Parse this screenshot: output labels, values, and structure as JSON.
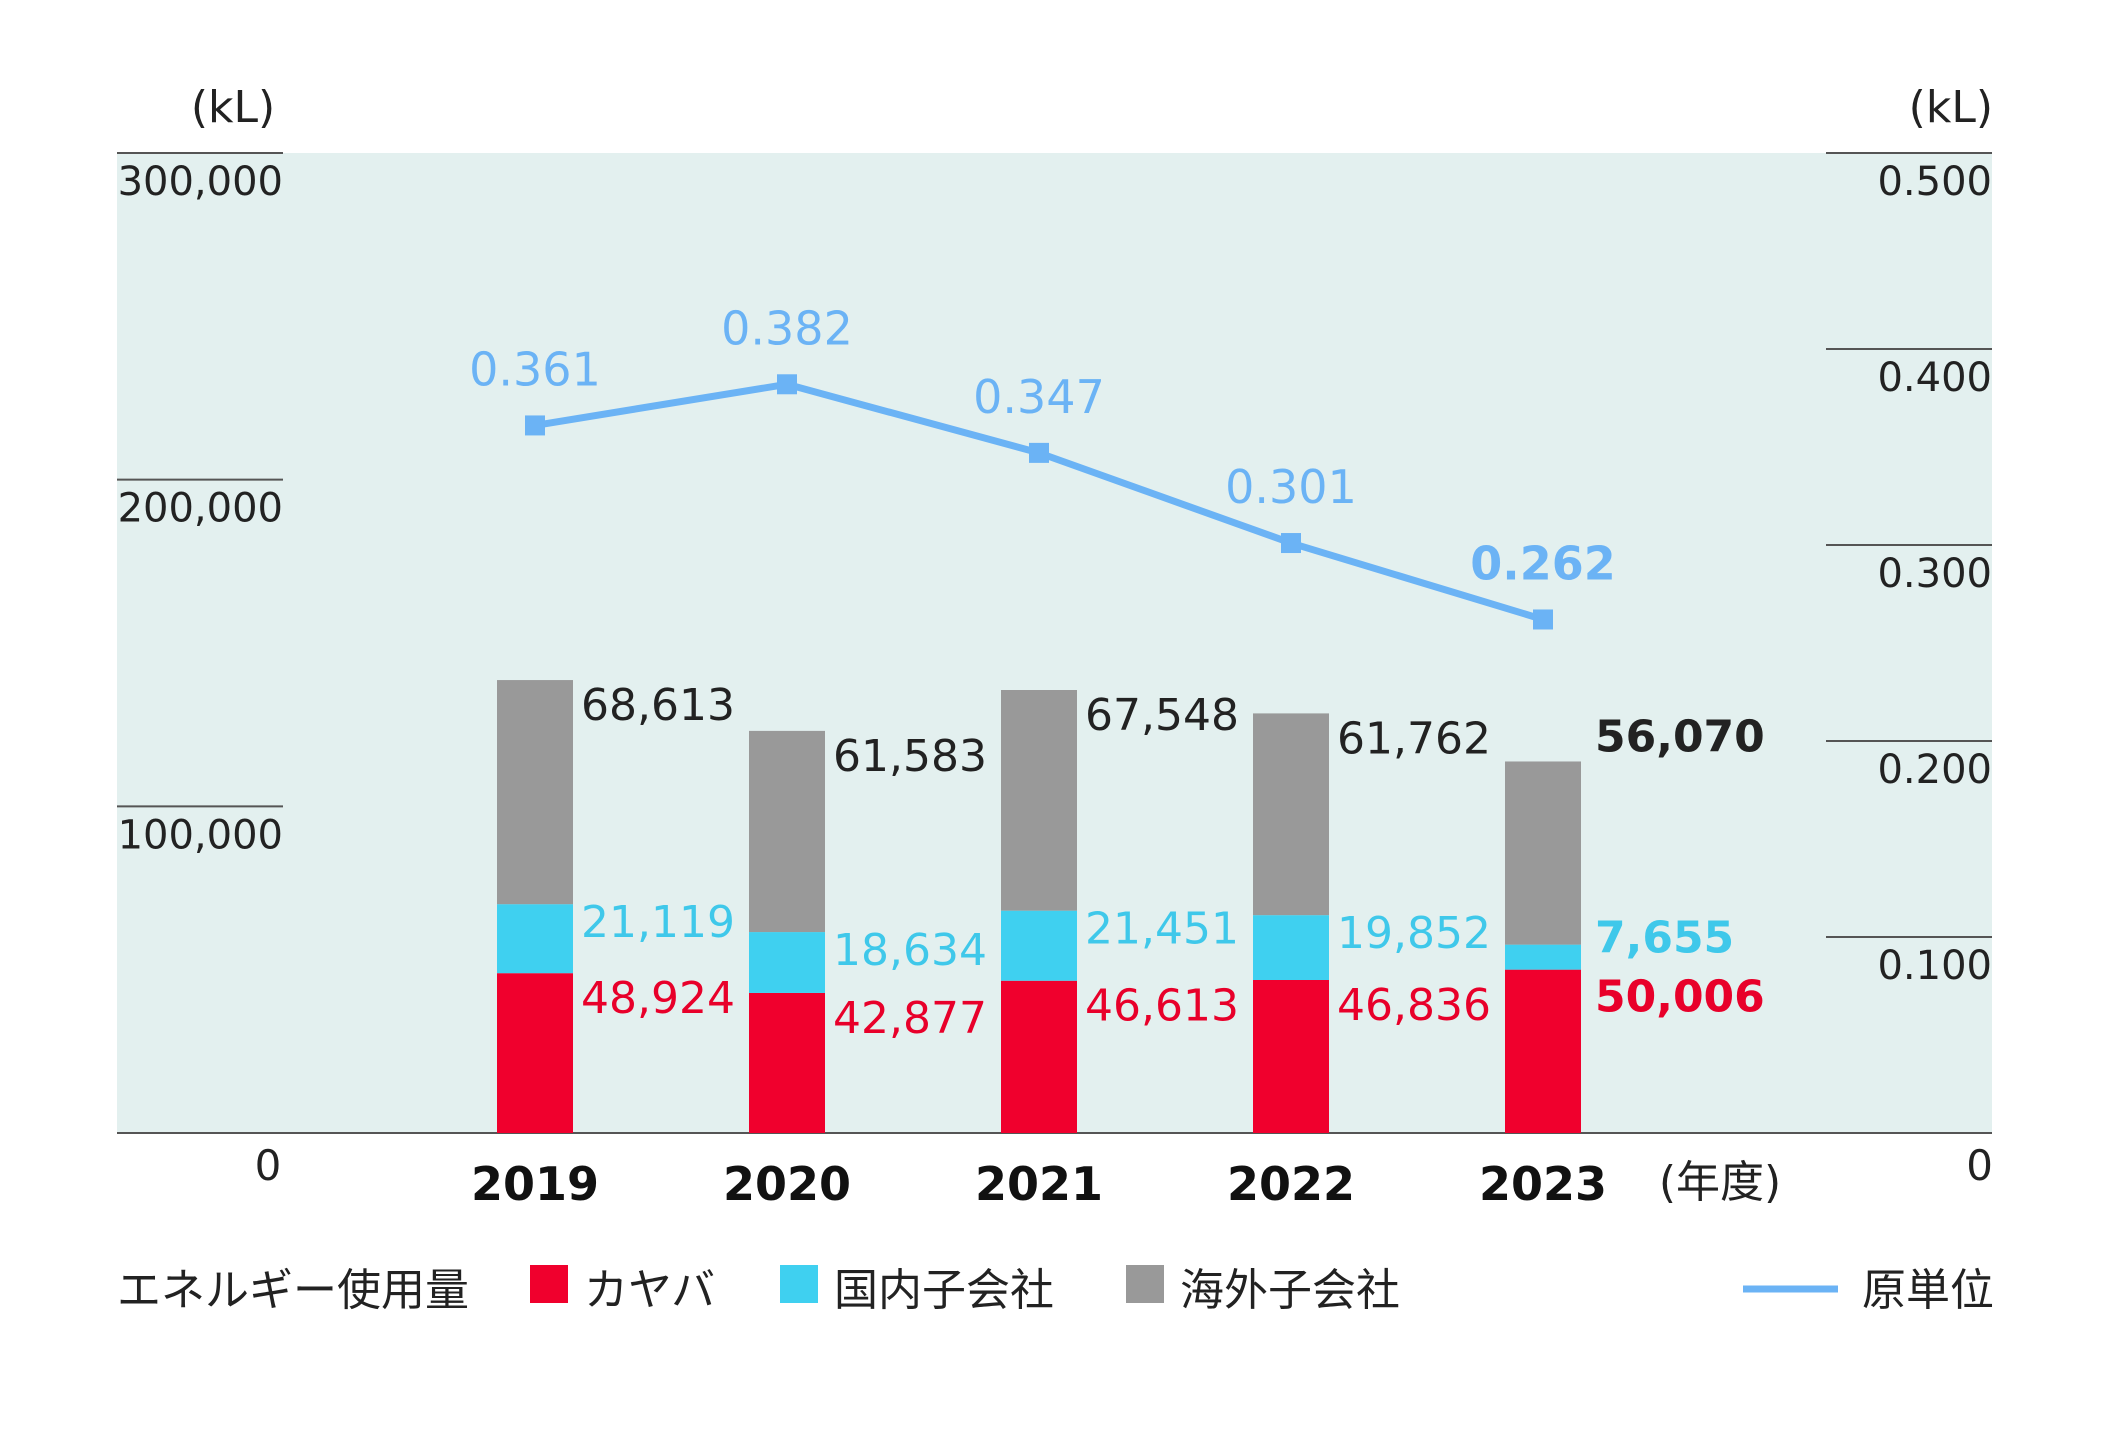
{
  "chart_data": {
    "type": "bar",
    "stacked": true,
    "categories": [
      "2019",
      "2020",
      "2021",
      "2022",
      "2023"
    ],
    "highlight_category": "2023",
    "left_axis": {
      "unit": "(kL)",
      "ticks": [
        "300,000",
        "200,000",
        "100,000"
      ],
      "zero": "0",
      "ylim": [
        0,
        300000
      ]
    },
    "right_axis": {
      "unit": "(kL)",
      "ticks": [
        "0.500",
        "0.400",
        "0.300",
        "0.200",
        "0.100"
      ],
      "zero": "0",
      "ylim": [
        0,
        0.5
      ]
    },
    "x_unit": "(年度)",
    "series": [
      {
        "name": "カヤバ",
        "color": "#f0002d",
        "values": [
          48924,
          42877,
          46613,
          46836,
          50006
        ],
        "labels": [
          "48,924",
          "42,877",
          "46,613",
          "46,836",
          "50,006"
        ]
      },
      {
        "name": "国内子会社",
        "color": "#3fd0f0",
        "values": [
          21119,
          18634,
          21451,
          19852,
          7655
        ],
        "labels": [
          "21,119",
          "18,634",
          "21,451",
          "19,852",
          "7,655"
        ]
      },
      {
        "name": "海外子会社",
        "color": "#999999",
        "values": [
          68613,
          61583,
          67548,
          61762,
          56070
        ],
        "labels": [
          "68,613",
          "61,583",
          "67,548",
          "61,762",
          "56,070"
        ]
      }
    ],
    "line_series": {
      "name": "原単位",
      "color": "#6bb3f5",
      "axis": "right",
      "values": [
        0.361,
        0.382,
        0.347,
        0.301,
        0.262
      ],
      "labels": [
        "0.361",
        "0.382",
        "0.347",
        "0.301",
        "0.262"
      ]
    },
    "legend": {
      "title": "エネルギー使用量",
      "placement": "bottom"
    },
    "colors": {
      "plot_background": "#e3f0ef",
      "axis_line": "#555555",
      "text": "#222222"
    }
  }
}
